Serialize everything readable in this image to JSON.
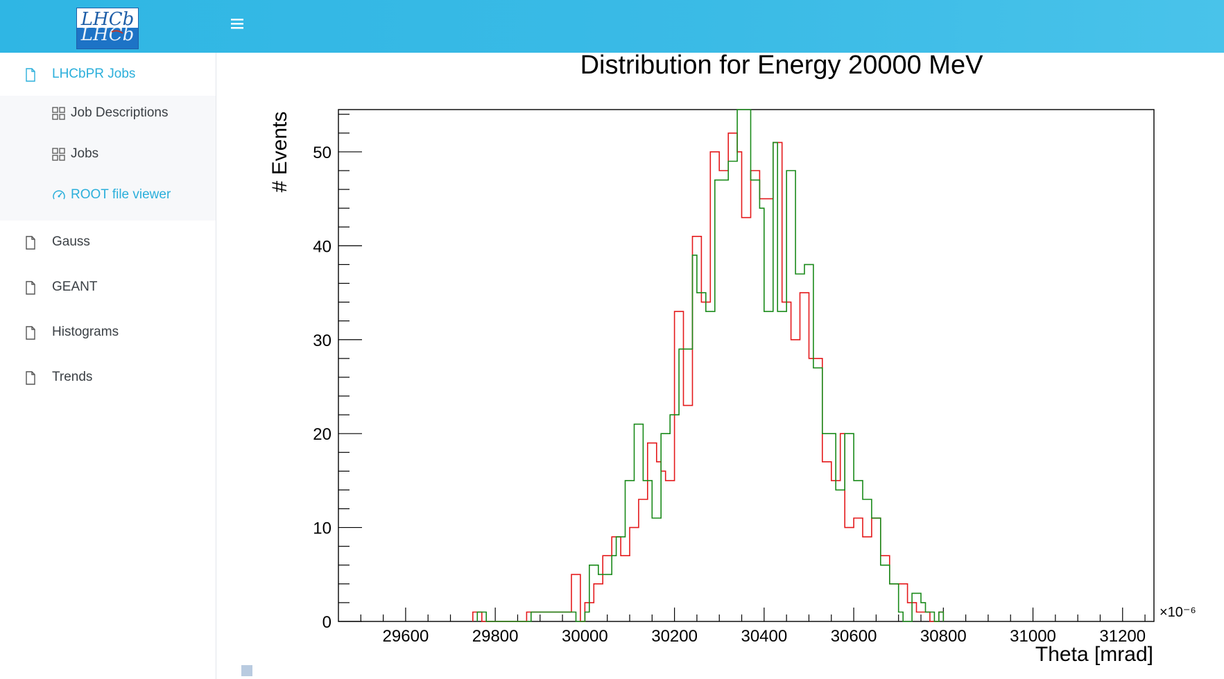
{
  "header": {
    "logo_text": "LHCb",
    "menu_icon": "hamburger-icon"
  },
  "sidebar": {
    "items": [
      {
        "label": "LHCbPR Jobs",
        "icon": "file-icon",
        "active": true
      },
      {
        "label": "Gauss",
        "icon": "file-icon"
      },
      {
        "label": "GEANT",
        "icon": "file-icon"
      },
      {
        "label": "Histograms",
        "icon": "file-icon"
      },
      {
        "label": "Trends",
        "icon": "file-icon"
      }
    ],
    "subitems": [
      {
        "label": "Job Descriptions",
        "icon": "grid-icon"
      },
      {
        "label": "Jobs",
        "icon": "grid-icon"
      },
      {
        "label": "ROOT file viewer",
        "icon": "dashboard-icon",
        "active": true
      }
    ]
  },
  "chart_data": {
    "type": "line",
    "step": true,
    "title": "Distribution for Energy 20000 MeV",
    "xlabel": "Theta [mrad]",
    "ylabel": "# Events",
    "x_scale_label": "×10⁻⁶",
    "xlim": [
      29450,
      31270
    ],
    "ylim": [
      0,
      54.5
    ],
    "x_ticks": [
      29600,
      29800,
      30000,
      30200,
      30400,
      30600,
      30800,
      31000,
      31200
    ],
    "y_ticks": [
      0,
      10,
      20,
      30,
      40,
      50
    ],
    "grid": false,
    "series": [
      {
        "color": "#e41a1c",
        "points": [
          [
            29750,
            0
          ],
          [
            29750,
            1
          ],
          [
            29770,
            1
          ],
          [
            29770,
            0
          ],
          [
            29870,
            0
          ],
          [
            29870,
            1
          ],
          [
            29970,
            1
          ],
          [
            29970,
            5
          ],
          [
            29990,
            5
          ],
          [
            29990,
            0
          ],
          [
            30000,
            0
          ],
          [
            30000,
            2
          ],
          [
            30020,
            2
          ],
          [
            30020,
            4
          ],
          [
            30040,
            4
          ],
          [
            30040,
            7
          ],
          [
            30060,
            7
          ],
          [
            30060,
            9
          ],
          [
            30080,
            9
          ],
          [
            30080,
            7
          ],
          [
            30100,
            7
          ],
          [
            30100,
            10
          ],
          [
            30120,
            10
          ],
          [
            30120,
            13
          ],
          [
            30140,
            13
          ],
          [
            30140,
            19
          ],
          [
            30160,
            19
          ],
          [
            30160,
            17
          ],
          [
            30170,
            17
          ],
          [
            30170,
            16
          ],
          [
            30180,
            16
          ],
          [
            30180,
            15
          ],
          [
            30200,
            15
          ],
          [
            30200,
            33
          ],
          [
            30220,
            33
          ],
          [
            30220,
            23
          ],
          [
            30240,
            23
          ],
          [
            30240,
            41
          ],
          [
            30260,
            41
          ],
          [
            30260,
            34
          ],
          [
            30280,
            34
          ],
          [
            30280,
            50
          ],
          [
            30300,
            50
          ],
          [
            30300,
            48
          ],
          [
            30320,
            48
          ],
          [
            30320,
            52
          ],
          [
            30340,
            52
          ],
          [
            30340,
            50
          ],
          [
            30350,
            50
          ],
          [
            30350,
            43
          ],
          [
            30370,
            43
          ],
          [
            30370,
            48
          ],
          [
            30390,
            48
          ],
          [
            30390,
            45
          ],
          [
            30400,
            45
          ],
          [
            30400,
            45
          ],
          [
            30420,
            45
          ],
          [
            30420,
            51
          ],
          [
            30440,
            51
          ],
          [
            30440,
            34
          ],
          [
            30460,
            34
          ],
          [
            30460,
            30
          ],
          [
            30480,
            30
          ],
          [
            30480,
            35
          ],
          [
            30500,
            35
          ],
          [
            30500,
            28
          ],
          [
            30530,
            28
          ],
          [
            30530,
            17
          ],
          [
            30550,
            17
          ],
          [
            30550,
            15
          ],
          [
            30570,
            15
          ],
          [
            30570,
            20
          ],
          [
            30580,
            20
          ],
          [
            30580,
            10
          ],
          [
            30600,
            10
          ],
          [
            30600,
            11
          ],
          [
            30620,
            11
          ],
          [
            30620,
            9
          ],
          [
            30640,
            9
          ],
          [
            30640,
            11
          ],
          [
            30660,
            11
          ],
          [
            30660,
            7
          ],
          [
            30680,
            7
          ],
          [
            30680,
            4
          ],
          [
            30720,
            4
          ],
          [
            30720,
            2
          ],
          [
            30740,
            2
          ],
          [
            30740,
            1
          ],
          [
            30770,
            1
          ],
          [
            30770,
            0
          ],
          [
            30790,
            0
          ],
          [
            30790,
            1
          ],
          [
            30800,
            1
          ],
          [
            30800,
            0
          ]
        ]
      },
      {
        "color": "#1a8a1a",
        "points": [
          [
            29760,
            0
          ],
          [
            29760,
            1
          ],
          [
            29780,
            1
          ],
          [
            29780,
            0
          ],
          [
            29880,
            0
          ],
          [
            29880,
            1
          ],
          [
            29940,
            1
          ],
          [
            29940,
            1
          ],
          [
            29960,
            1
          ],
          [
            29960,
            1
          ],
          [
            29980,
            1
          ],
          [
            29980,
            0
          ],
          [
            30000,
            0
          ],
          [
            30000,
            1
          ],
          [
            30010,
            1
          ],
          [
            30010,
            6
          ],
          [
            30030,
            6
          ],
          [
            30030,
            5
          ],
          [
            30060,
            5
          ],
          [
            30060,
            7
          ],
          [
            30070,
            7
          ],
          [
            30070,
            9
          ],
          [
            30090,
            9
          ],
          [
            30090,
            15
          ],
          [
            30110,
            15
          ],
          [
            30110,
            21
          ],
          [
            30130,
            21
          ],
          [
            30130,
            15
          ],
          [
            30150,
            15
          ],
          [
            30150,
            11
          ],
          [
            30170,
            11
          ],
          [
            30170,
            20
          ],
          [
            30190,
            20
          ],
          [
            30190,
            22
          ],
          [
            30210,
            22
          ],
          [
            30210,
            29
          ],
          [
            30240,
            29
          ],
          [
            30240,
            39
          ],
          [
            30250,
            39
          ],
          [
            30250,
            35
          ],
          [
            30270,
            35
          ],
          [
            30270,
            33
          ],
          [
            30290,
            33
          ],
          [
            30290,
            47
          ],
          [
            30310,
            47
          ],
          [
            30310,
            47
          ],
          [
            30320,
            47
          ],
          [
            30320,
            49
          ],
          [
            30340,
            49
          ],
          [
            30340,
            55
          ],
          [
            30370,
            55
          ],
          [
            30370,
            47
          ],
          [
            30390,
            47
          ],
          [
            30390,
            44
          ],
          [
            30400,
            44
          ],
          [
            30400,
            33
          ],
          [
            30420,
            33
          ],
          [
            30420,
            51
          ],
          [
            30430,
            51
          ],
          [
            30430,
            33
          ],
          [
            30450,
            33
          ],
          [
            30450,
            48
          ],
          [
            30470,
            48
          ],
          [
            30470,
            37
          ],
          [
            30490,
            37
          ],
          [
            30490,
            38
          ],
          [
            30510,
            38
          ],
          [
            30510,
            27
          ],
          [
            30530,
            27
          ],
          [
            30530,
            20
          ],
          [
            30560,
            20
          ],
          [
            30560,
            14
          ],
          [
            30580,
            14
          ],
          [
            30580,
            20
          ],
          [
            30600,
            20
          ],
          [
            30600,
            15
          ],
          [
            30620,
            15
          ],
          [
            30620,
            13
          ],
          [
            30640,
            13
          ],
          [
            30640,
            11
          ],
          [
            30660,
            11
          ],
          [
            30660,
            6
          ],
          [
            30680,
            6
          ],
          [
            30680,
            4
          ],
          [
            30700,
            4
          ],
          [
            30700,
            1
          ],
          [
            30710,
            1
          ],
          [
            30710,
            0
          ],
          [
            30730,
            0
          ],
          [
            30730,
            3
          ],
          [
            30750,
            3
          ],
          [
            30750,
            2
          ],
          [
            30760,
            2
          ],
          [
            30760,
            1
          ],
          [
            30780,
            1
          ],
          [
            30780,
            0
          ],
          [
            30790,
            0
          ],
          [
            30790,
            1
          ],
          [
            30800,
            1
          ],
          [
            30800,
            0
          ]
        ]
      }
    ]
  }
}
